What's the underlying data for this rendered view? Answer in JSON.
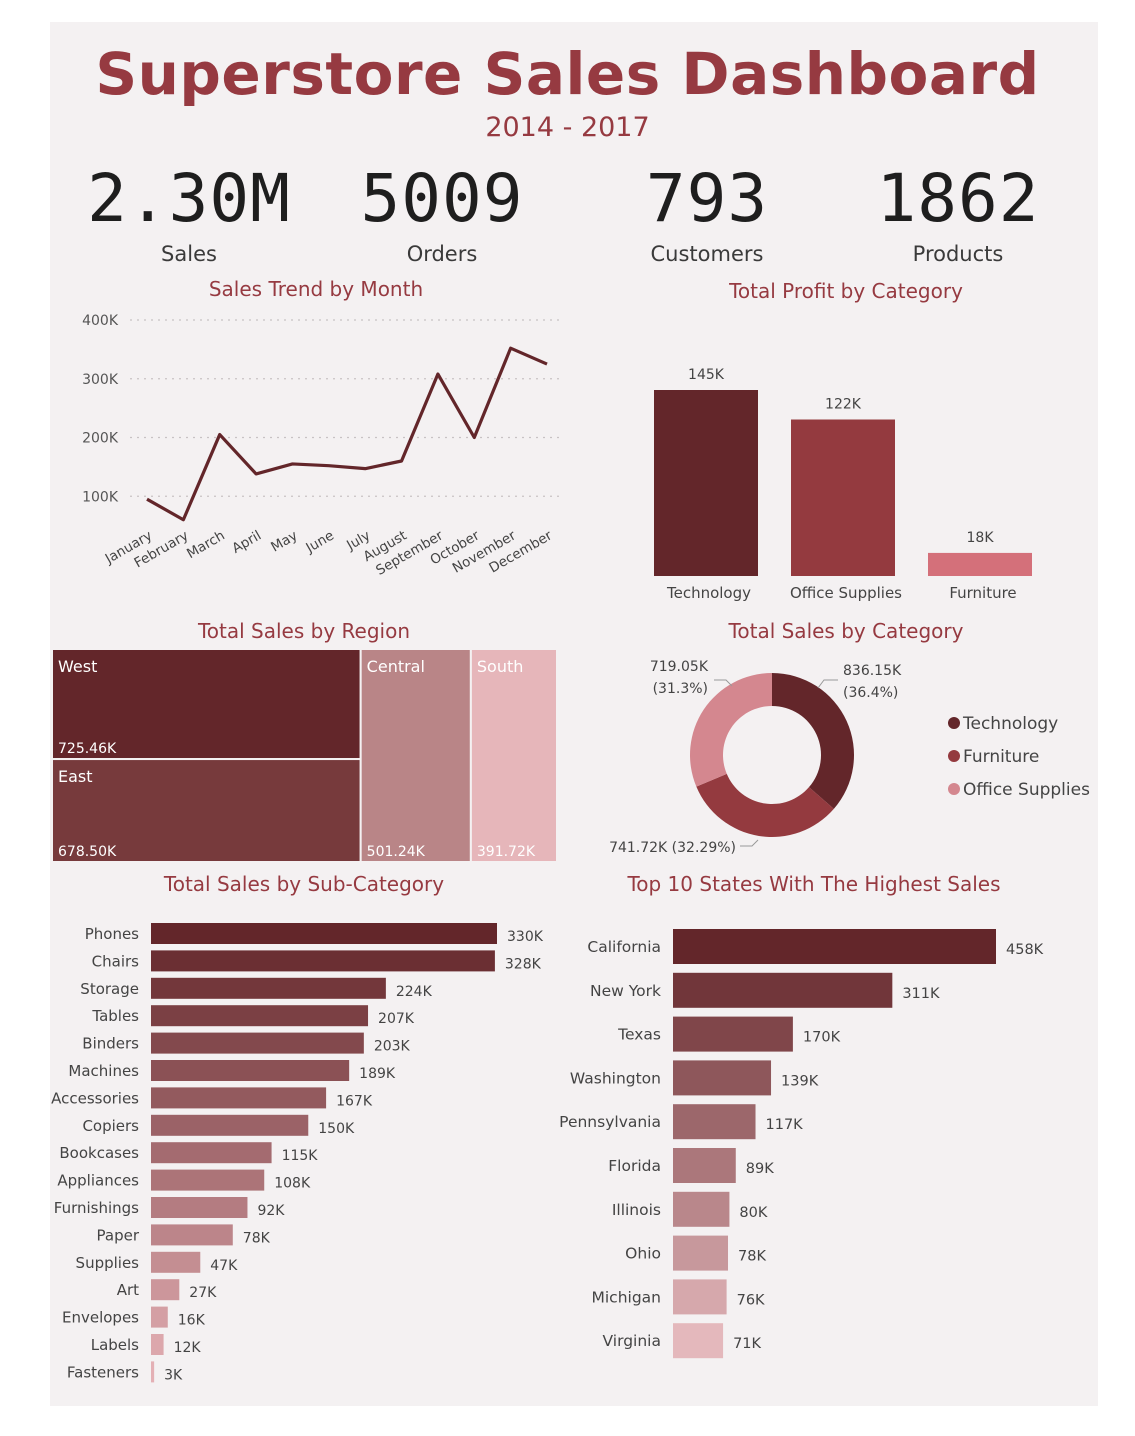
{
  "header": {
    "title": "Superstore Sales Dashboard",
    "subtitle": "2014 - 2017"
  },
  "kpis": [
    {
      "value": "2.30M",
      "label": "Sales"
    },
    {
      "value": "5009",
      "label": "Orders"
    },
    {
      "value": "793",
      "label": "Customers"
    },
    {
      "value": "1862",
      "label": "Products"
    }
  ],
  "colors": {
    "accent": "#963a41",
    "dark": "#63262a",
    "mid": "#943a3f",
    "light": "#d4707a"
  },
  "chart_data": [
    {
      "id": "monthly",
      "type": "line",
      "title": "Sales Trend by Month",
      "categories": [
        "January",
        "February",
        "March",
        "April",
        "May",
        "June",
        "July",
        "August",
        "September",
        "October",
        "November",
        "December"
      ],
      "values": [
        95000,
        60000,
        205000,
        138000,
        155000,
        152000,
        147000,
        160000,
        308000,
        200000,
        352000,
        325000
      ],
      "yticks": [
        "100K",
        "200K",
        "300K",
        "400K"
      ],
      "ylim": [
        0,
        400000
      ],
      "grid": true
    },
    {
      "id": "profit",
      "type": "bar",
      "title": "Total Profit by Category",
      "categories": [
        "Technology",
        "Office Supplies",
        "Furniture"
      ],
      "values": [
        145000,
        122000,
        18000
      ],
      "labels": [
        "145K",
        "122K",
        "18K"
      ]
    },
    {
      "id": "region",
      "type": "treemap",
      "title": "Total Sales by Region",
      "items": [
        {
          "name": "West",
          "value": 725460,
          "label": "725.46K"
        },
        {
          "name": "East",
          "value": 678500,
          "label": "678.50K"
        },
        {
          "name": "Central",
          "value": 501240,
          "label": "501.24K"
        },
        {
          "name": "South",
          "value": 391720,
          "label": "391.72K"
        }
      ]
    },
    {
      "id": "category",
      "type": "pie",
      "title": "Total Sales by Category",
      "slices": [
        {
          "name": "Technology",
          "value": 836.15,
          "label": "836.15K",
          "pct": "(36.4%)"
        },
        {
          "name": "Furniture",
          "value": 741.72,
          "label": "741.72K (32.29%)"
        },
        {
          "name": "Office Supplies",
          "value": 719.05,
          "label": "719.05K",
          "pct": "(31.3%)"
        }
      ],
      "legend": [
        "Technology",
        "Furniture",
        "Office Supplies"
      ]
    },
    {
      "id": "subcategory",
      "type": "bar",
      "title": "Total Sales by Sub-Category",
      "categories": [
        "Phones",
        "Chairs",
        "Storage",
        "Tables",
        "Binders",
        "Machines",
        "Accessories",
        "Copiers",
        "Bookcases",
        "Appliances",
        "Furnishings",
        "Paper",
        "Supplies",
        "Art",
        "Envelopes",
        "Labels",
        "Fasteners"
      ],
      "values": [
        330,
        328,
        224,
        207,
        203,
        189,
        167,
        150,
        115,
        108,
        92,
        78,
        47,
        27,
        16,
        12,
        3
      ],
      "labels": [
        "330K",
        "328K",
        "224K",
        "207K",
        "203K",
        "189K",
        "167K",
        "150K",
        "115K",
        "108K",
        "92K",
        "78K",
        "47K",
        "27K",
        "16K",
        "12K",
        "3K"
      ]
    },
    {
      "id": "states",
      "type": "bar",
      "title": "Top 10 States With The Highest Sales",
      "categories": [
        "California",
        "New York",
        "Texas",
        "Washington",
        "Pennsylvania",
        "Florida",
        "Illinois",
        "Ohio",
        "Michigan",
        "Virginia"
      ],
      "values": [
        458,
        311,
        170,
        139,
        117,
        89,
        80,
        78,
        76,
        71
      ],
      "labels": [
        "458K",
        "311K",
        "170K",
        "139K",
        "117K",
        "89K",
        "80K",
        "78K",
        "76K",
        "71K"
      ]
    }
  ]
}
